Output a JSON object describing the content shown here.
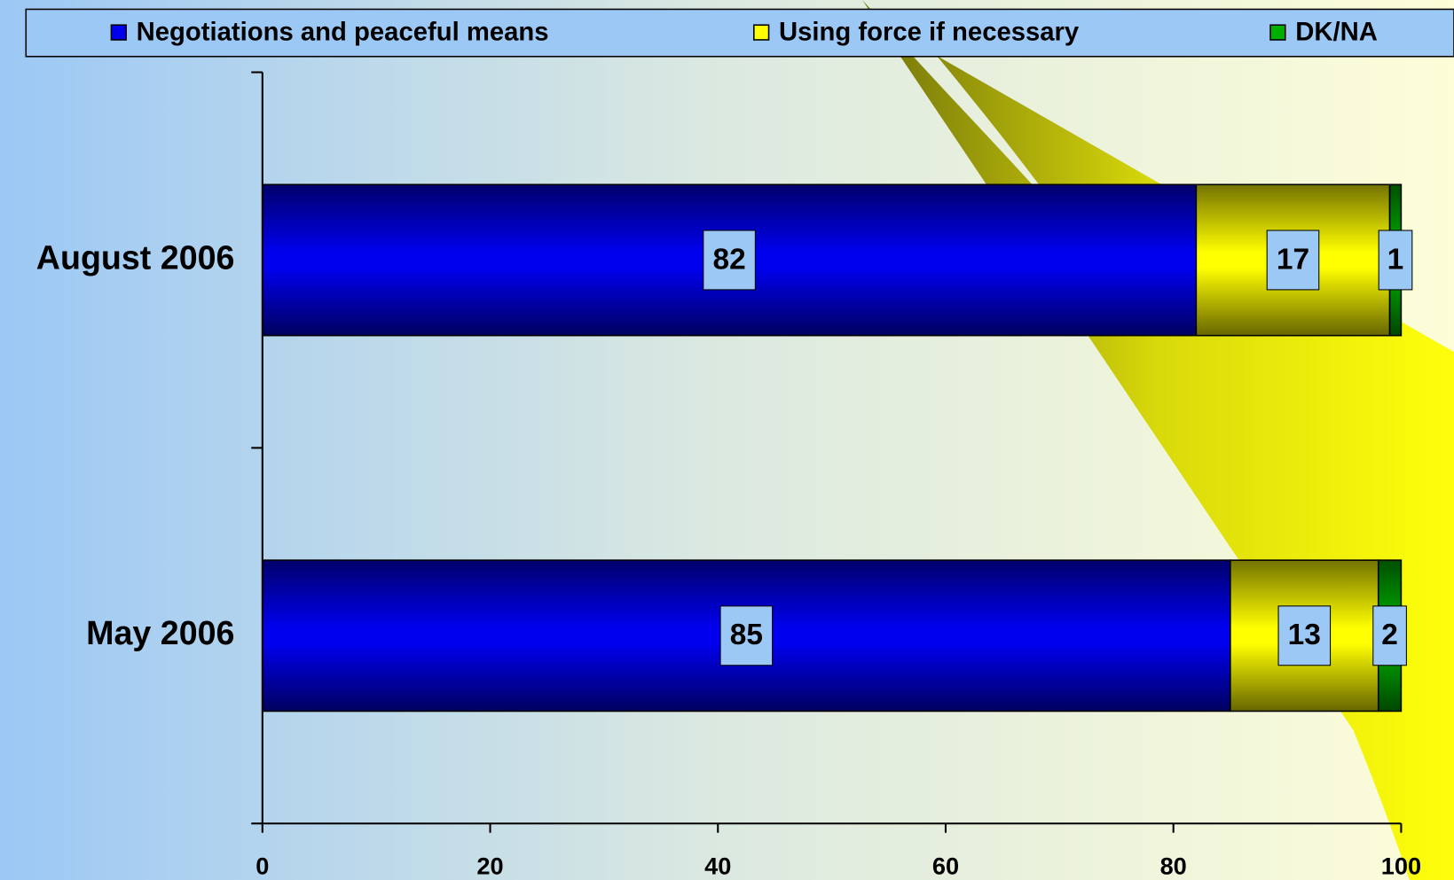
{
  "chart_data": {
    "type": "stacked-bar-horizontal",
    "categories": [
      "August 2006",
      "May 2006"
    ],
    "series": [
      {
        "name": "Negotiations and peaceful means",
        "color": "#0000ee",
        "values": [
          82,
          85
        ]
      },
      {
        "name": "Using force if necessary",
        "color": "#ffff00",
        "values": [
          17,
          13
        ]
      },
      {
        "name": "DK/NA",
        "color": "#00b000",
        "values": [
          1,
          2
        ]
      }
    ],
    "xlim": [
      0,
      100
    ],
    "xticks": [
      0,
      20,
      40,
      60,
      80,
      100
    ],
    "legend": "top"
  }
}
